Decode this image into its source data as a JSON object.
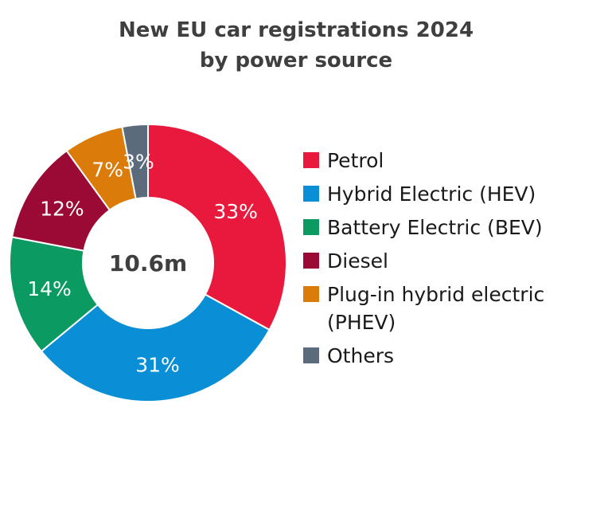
{
  "chart_data": {
    "type": "pie",
    "title_lines": [
      "New EU car registrations 2024",
      "by power source"
    ],
    "center_label": "10.6m",
    "slices": [
      {
        "name": "Petrol",
        "value": 33,
        "label": "33%",
        "color": "#e8193c"
      },
      {
        "name": "Hybrid Electric (HEV)",
        "value": 31,
        "label": "31%",
        "color": "#0a8fd6"
      },
      {
        "name": "Battery Electric (BEV)",
        "value": 14,
        "label": "14%",
        "color": "#0a9a62"
      },
      {
        "name": "Diesel",
        "value": 12,
        "label": "12%",
        "color": "#9a0a35"
      },
      {
        "name": "Plug-in hybrid electric (PHEV)",
        "value": 7,
        "label": "7%",
        "color": "#db7b0a"
      },
      {
        "name": "Others",
        "value": 3,
        "label": "3%",
        "color": "#5b6b7c"
      }
    ],
    "legend": {
      "placement": "right",
      "items": [
        {
          "lines": [
            "Petrol"
          ],
          "color": "#e8193c"
        },
        {
          "lines": [
            "Hybrid Electric (HEV)"
          ],
          "color": "#0a8fd6"
        },
        {
          "lines": [
            "Battery Electric (BEV)"
          ],
          "color": "#0a9a62"
        },
        {
          "lines": [
            "Diesel"
          ],
          "color": "#9a0a35"
        },
        {
          "lines": [
            "Plug-in hybrid electric",
            "(PHEV)"
          ],
          "color": "#db7b0a"
        },
        {
          "lines": [
            "Others"
          ],
          "color": "#5b6b7c"
        }
      ]
    }
  }
}
